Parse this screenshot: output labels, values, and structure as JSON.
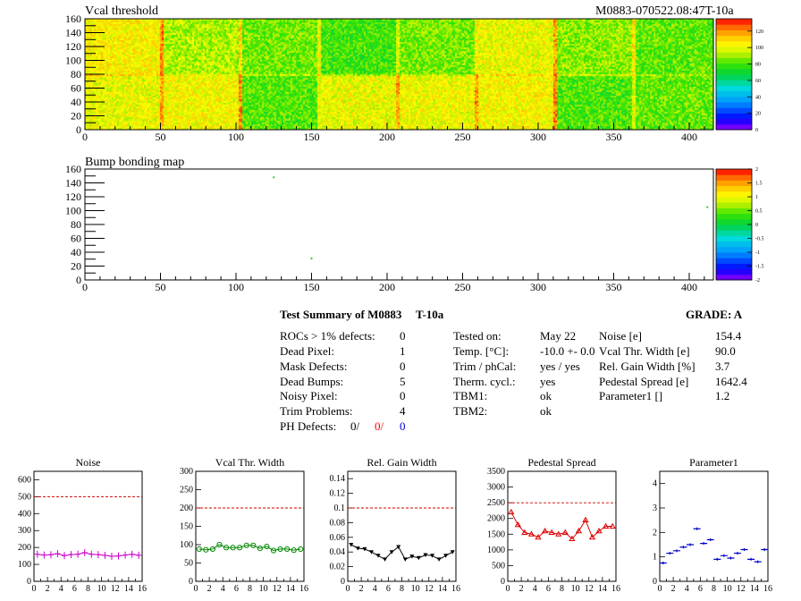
{
  "header": {
    "left_title": "Vcal threshold",
    "right_title": "M0883-070522.08:47T-10a"
  },
  "bump_title": "Bump bonding map",
  "maps": {
    "x_ticks": [
      "0",
      "50",
      "100",
      "150",
      "200",
      "250",
      "300",
      "350",
      "400"
    ],
    "y_ticks": [
      "0",
      "20",
      "40",
      "60",
      "80",
      "100",
      "120",
      "140",
      "160"
    ],
    "vcal_scale": [
      "0",
      "20",
      "40",
      "60",
      "80",
      "100",
      "120"
    ],
    "bump_scale": [
      "-2",
      "-1.5",
      "-1",
      "-0.5",
      "0",
      "0.5",
      "1",
      "1.5",
      "2"
    ]
  },
  "summary": {
    "title": "Test Summary of M0883",
    "test_id": "T-10a",
    "grade": "GRADE:  A",
    "left": [
      {
        "label": "ROCs > 1% defects:",
        "value": "0"
      },
      {
        "label": "Dead Pixel:",
        "value": "1"
      },
      {
        "label": "Mask Defects:",
        "value": "0"
      },
      {
        "label": "Dead Bumps:",
        "value": "5"
      },
      {
        "label": "Noisy Pixel:",
        "value": "0"
      },
      {
        "label": "Trim Problems:",
        "value": "4"
      }
    ],
    "ph_label": "PH Defects:",
    "ph_values": [
      {
        "text": "0/",
        "color": "#000000"
      },
      {
        "text": "0/",
        "color": "#ff0000"
      },
      {
        "text": "0",
        "color": "#0000cc"
      }
    ],
    "middle": [
      {
        "label": "Tested on:",
        "value": "May 22"
      },
      {
        "label": "Temp. [°C]:",
        "value": "-10.0 +- 0.0"
      },
      {
        "label": "Trim / phCal:",
        "value": "yes / yes"
      },
      {
        "label": "Therm. cycl.:",
        "value": "yes"
      },
      {
        "label": "TBM1:",
        "value": "ok"
      },
      {
        "label": "TBM2:",
        "value": "ok"
      }
    ],
    "right": [
      {
        "label": "Noise [e]",
        "value": "154.4"
      },
      {
        "label": "Vcal Thr. Width [e]",
        "value": "90.0"
      },
      {
        "label": "Rel. Gain Width [%]",
        "value": "3.7"
      },
      {
        "label": "Pedestal Spread [e]",
        "value": "1642.4"
      },
      {
        "label": "Parameter1 []",
        "value": "1.2"
      }
    ]
  },
  "chart_data": [
    {
      "type": "heatmap",
      "title": "Vcal threshold",
      "xlim": [
        0,
        416
      ],
      "ylim": [
        0,
        160
      ],
      "zlim": [
        0,
        135
      ],
      "colorbar_ticks": [
        0,
        20,
        40,
        60,
        80,
        100,
        120
      ],
      "roc_base_values": [
        104,
        92,
        85,
        80,
        86,
        100,
        88,
        83,
        100,
        102,
        82,
        100,
        101,
        103,
        81,
        84
      ],
      "note_layout": "16 readout chips, 8 columns by 2 rows"
    },
    {
      "type": "heatmap",
      "title": "Bump bonding map",
      "xlim": [
        0,
        416
      ],
      "ylim": [
        0,
        160
      ],
      "zlim": [
        -2,
        2
      ],
      "colorbar_ticks": [
        -2,
        -1.5,
        -1,
        -0.5,
        0,
        0.5,
        1,
        1.5,
        2
      ],
      "points": [
        {
          "x": 125,
          "y": 148
        },
        {
          "x": 150,
          "y": 31
        },
        {
          "x": 412,
          "y": 105
        }
      ]
    },
    {
      "type": "line",
      "title": "Noise",
      "color": "#cc00cc",
      "marker": "plus",
      "xlim": [
        0,
        16
      ],
      "ylim": [
        0,
        650
      ],
      "yticks": [
        0,
        100,
        200,
        300,
        400,
        500,
        600
      ],
      "xticks": [
        0,
        2,
        4,
        6,
        8,
        10,
        12,
        14,
        16
      ],
      "reference": 500,
      "x": [
        0.5,
        1.5,
        2.5,
        3.5,
        4.5,
        5.5,
        6.5,
        7.5,
        8.5,
        9.5,
        10.5,
        11.5,
        12.5,
        13.5,
        14.5,
        15.5
      ],
      "values": [
        160,
        155,
        157,
        163,
        152,
        158,
        160,
        170,
        160,
        158,
        153,
        148,
        150,
        155,
        160,
        154
      ]
    },
    {
      "type": "line",
      "title": "Vcal Thr. Width",
      "color": "#008800",
      "marker": "circle",
      "xlim": [
        0,
        16
      ],
      "ylim": [
        0,
        300
      ],
      "yticks": [
        0,
        50,
        100,
        150,
        200,
        250,
        300
      ],
      "xticks": [
        0,
        2,
        4,
        6,
        8,
        10,
        12,
        14,
        16
      ],
      "reference": 200,
      "x": [
        0.5,
        1.5,
        2.5,
        3.5,
        4.5,
        5.5,
        6.5,
        7.5,
        8.5,
        9.5,
        10.5,
        11.5,
        12.5,
        13.5,
        14.5,
        15.5
      ],
      "values": [
        88,
        86,
        88,
        100,
        92,
        92,
        92,
        98,
        98,
        90,
        95,
        84,
        88,
        88,
        85,
        88
      ]
    },
    {
      "type": "line",
      "title": "Rel. Gain Width",
      "color": "#000000",
      "marker": "triangle-down",
      "xlim": [
        0,
        16
      ],
      "ylim": [
        0,
        0.15
      ],
      "yticks": [
        0,
        0.02,
        0.04,
        0.06,
        0.08,
        0.1,
        0.12,
        0.14
      ],
      "ytick_labels": [
        "0",
        "0.02",
        "0.04",
        "0.06",
        "0.08",
        "0.1",
        "0.12",
        "0.14"
      ],
      "xticks": [
        0,
        2,
        4,
        6,
        8,
        10,
        12,
        14,
        16
      ],
      "reference": 0.1,
      "x": [
        0.5,
        1.5,
        2.5,
        3.5,
        4.5,
        5.5,
        6.5,
        7.5,
        8.5,
        9.5,
        10.5,
        11.5,
        12.5,
        13.5,
        14.5,
        15.5
      ],
      "values": [
        0.05,
        0.045,
        0.044,
        0.04,
        0.035,
        0.03,
        0.04,
        0.047,
        0.03,
        0.034,
        0.032,
        0.036,
        0.035,
        0.03,
        0.035,
        0.04
      ]
    },
    {
      "type": "line",
      "title": "Pedestal Spread",
      "color": "#dd0000",
      "marker": "triangle-up",
      "xlim": [
        0,
        16
      ],
      "ylim": [
        0,
        3500
      ],
      "yticks": [
        0,
        500,
        1000,
        1500,
        2000,
        2500,
        3000,
        3500
      ],
      "xticks": [
        0,
        2,
        4,
        6,
        8,
        10,
        12,
        14,
        16
      ],
      "reference": 2500,
      "x": [
        0.5,
        1.5,
        2.5,
        3.5,
        4.5,
        5.5,
        6.5,
        7.5,
        8.5,
        9.5,
        10.5,
        11.5,
        12.5,
        13.5,
        14.5,
        15.5
      ],
      "values": [
        2200,
        1800,
        1550,
        1500,
        1400,
        1600,
        1550,
        1500,
        1550,
        1350,
        1600,
        1950,
        1400,
        1600,
        1750,
        1750
      ]
    },
    {
      "type": "scatter",
      "title": "Parameter1",
      "color": "#0000cc",
      "marker": "hbar",
      "xlim": [
        0,
        16
      ],
      "ylim": [
        0,
        4.5
      ],
      "yticks": [
        0,
        1,
        2,
        3,
        4
      ],
      "xticks": [
        0,
        2,
        4,
        6,
        8,
        10,
        12,
        14,
        16
      ],
      "x": [
        0.5,
        1.5,
        2.5,
        3.5,
        4.5,
        5.5,
        6.5,
        7.5,
        8.5,
        9.5,
        10.5,
        11.5,
        12.5,
        13.5,
        14.5,
        15.5
      ],
      "values": [
        0.75,
        1.15,
        1.25,
        1.4,
        1.5,
        2.15,
        1.55,
        1.7,
        0.9,
        1.05,
        0.95,
        1.15,
        1.3,
        0.9,
        0.8,
        1.3
      ]
    }
  ]
}
